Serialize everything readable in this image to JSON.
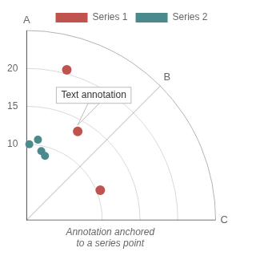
{
  "chart_data": {
    "type": "polar_scatter",
    "subtitle": "Annotation anchored\nto a series point",
    "xlim": [
      0,
      90
    ],
    "xticks": [
      {
        "value": 90,
        "label": "A"
      },
      {
        "value": 45,
        "label": "B"
      },
      {
        "value": 0,
        "label": "C"
      }
    ],
    "ylim": [
      0,
      25
    ],
    "yticks": [
      10,
      15,
      20
    ],
    "grid": true,
    "legend": "upper right",
    "series": [
      {
        "name": "Series 1",
        "color": "#c0534e",
        "values": [
          [
            75,
            20.5
          ],
          [
            60,
            13.5
          ],
          [
            22,
            10.5
          ]
        ]
      },
      {
        "name": "Series 2",
        "color": "#4a8a8c",
        "values": [
          [
            88,
            10.0
          ],
          [
            82,
            10.7
          ],
          [
            78,
            9.3
          ],
          [
            74,
            8.8
          ]
        ]
      }
    ],
    "annotations": [
      {
        "text": "Text annotation",
        "x": 60,
        "y": 13.5
      }
    ]
  }
}
